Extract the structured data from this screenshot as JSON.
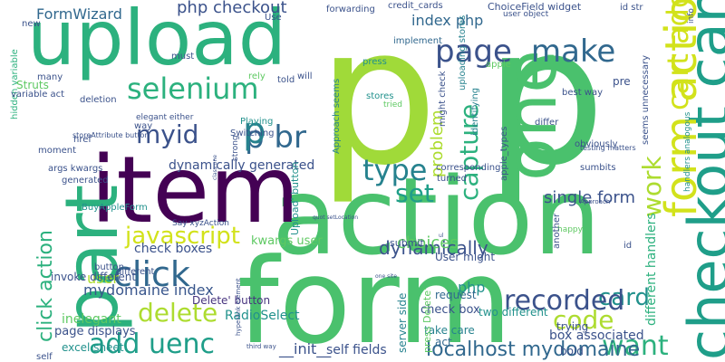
{
  "words": [
    {
      "text": "p",
      "color": "#a0da39",
      "vertical": false
    },
    {
      "text": "p",
      "color": "#4ac16d",
      "vertical": false
    },
    {
      "text": "form",
      "color": "#4ac16d",
      "vertical": false
    },
    {
      "text": "action",
      "color": "#4ac16d",
      "vertical": false
    },
    {
      "text": "item",
      "color": "#440154",
      "vertical": false
    },
    {
      "text": "part",
      "color": "#2cb17e",
      "vertical": true
    },
    {
      "text": "upload",
      "color": "#2cb17e",
      "vertical": false
    },
    {
      "text": "one",
      "color": "#4ac16d",
      "vertical": true
    },
    {
      "text": "checkout cart",
      "color": "#1f9e89",
      "vertical": true
    },
    {
      "text": "form action",
      "color": "#d2e21b",
      "vertical": false
    },
    {
      "text": "selenium",
      "color": "#2cb17e",
      "vertical": false
    },
    {
      "text": "myid",
      "color": "#3b528b",
      "vertical": false
    },
    {
      "text": "p br",
      "color": "#31688e",
      "vertical": false
    },
    {
      "text": "p",
      "color": "#26828e",
      "vertical": false
    },
    {
      "text": "page",
      "color": "#3b528b",
      "vertical": false
    },
    {
      "text": "make",
      "color": "#31688e",
      "vertical": false
    },
    {
      "text": "cart add",
      "color": "#d2e21b",
      "vertical": true
    },
    {
      "text": "capture",
      "color": "#2cb17e",
      "vertical": true
    },
    {
      "text": "type",
      "color": "#26828e",
      "vertical": false
    },
    {
      "text": "set",
      "color": "#1f9e89",
      "vertical": false
    },
    {
      "text": "work",
      "color": "#addc30",
      "vertical": true
    },
    {
      "text": "javascript",
      "color": "#d2e21b",
      "vertical": false
    },
    {
      "text": "click action",
      "color": "#2cb17e",
      "vertical": true
    },
    {
      "text": "click",
      "color": "#31688e",
      "vertical": false
    },
    {
      "text": "delete",
      "color": "#addc30",
      "vertical": false
    },
    {
      "text": "add uenc",
      "color": "#1f9e89",
      "vertical": false
    },
    {
      "text": "card",
      "color": "#21918c",
      "vertical": false
    },
    {
      "text": "recorded",
      "color": "#3b528b",
      "vertical": false
    },
    {
      "text": "code",
      "color": "#addc30",
      "vertical": false
    },
    {
      "text": "want",
      "color": "#2cb17e",
      "vertical": false
    },
    {
      "text": "localhost mydomaine",
      "color": "#31688e",
      "vertical": false
    },
    {
      "text": "mydomaine index",
      "color": "#39568c",
      "vertical": false
    },
    {
      "text": "dynamically",
      "color": "#3b528b",
      "vertical": false
    },
    {
      "text": "FormWizard",
      "color": "#31688e",
      "vertical": false
    },
    {
      "text": "php checkout",
      "color": "#3b528b",
      "vertical": false
    },
    {
      "text": "index php",
      "color": "#31688e",
      "vertical": false
    },
    {
      "text": "problem",
      "color": "#addc30",
      "vertical": true
    },
    {
      "text": "choices",
      "color": "#5ec962",
      "vertical": false
    },
    {
      "text": "dynamically generated",
      "color": "#3b528b",
      "vertical": false
    },
    {
      "text": "php",
      "color": "#21918c",
      "vertical": false
    },
    {
      "text": "single form",
      "color": "#3b528b",
      "vertical": false
    },
    {
      "text": "Delete' button",
      "color": "#46337e",
      "vertical": false
    },
    {
      "text": "box associated",
      "color": "#3b528b",
      "vertical": false
    },
    {
      "text": "server side",
      "color": "#26828e",
      "vertical": true
    },
    {
      "text": "different handlers",
      "color": "#2cb17e",
      "vertical": true
    },
    {
      "text": "__init__",
      "color": "#3b528b",
      "vertical": false
    },
    {
      "text": "self fields",
      "color": "#3b528b",
      "vertical": false
    },
    {
      "text": "user",
      "color": "#addc30",
      "vertical": false
    },
    {
      "text": "check boxes",
      "color": "#3b528b",
      "vertical": false
    },
    {
      "text": "kwargs user",
      "color": "#5ec962",
      "vertical": false
    },
    {
      "text": "invoke different",
      "color": "#3b528b",
      "vertical": false
    },
    {
      "text": "RadioSelect",
      "color": "#21918c",
      "vertical": false
    },
    {
      "text": "Upload' button",
      "color": "#21918c",
      "vertical": false
    },
    {
      "text": "page displays",
      "color": "#3b528b",
      "vertical": false
    },
    {
      "text": "excel sheet",
      "color": "#21918c",
      "vertical": false
    },
    {
      "text": "inelegant",
      "color": "#5ec962",
      "vertical": false
    },
    {
      "text": "check box",
      "color": "#3b528b",
      "vertical": false
    },
    {
      "text": "request",
      "color": "#31688e",
      "vertical": false
    },
    {
      "text": "two different",
      "color": "#21918c",
      "vertical": false
    },
    {
      "text": "take care",
      "color": "#26828e",
      "vertical": false
    },
    {
      "text": "trying",
      "color": "#3b528b",
      "vertical": false
    },
    {
      "text": "act",
      "color": "#31688e",
      "vertical": false
    },
    {
      "text": "bold",
      "color": "#3b528b",
      "vertical": false
    },
    {
      "text": "User might",
      "color": "#3b528b",
      "vertical": false
    },
    {
      "text": "submit",
      "color": "#3b528b",
      "vertical": false
    },
    {
      "text": "press Delete'",
      "color": "#5ec962",
      "vertical": true
    },
    {
      "text": "Approach seems",
      "color": "#26828e",
      "vertical": true
    },
    {
      "text": "uploading stores",
      "color": "#26828e",
      "vertical": true
    },
    {
      "text": "identifying",
      "color": "#26828e",
      "vertical": true
    },
    {
      "text": "might check",
      "color": "#3b528b",
      "vertical": true
    },
    {
      "text": "apple_types",
      "color": "#3b528b",
      "vertical": true
    },
    {
      "text": "seems unnecessary",
      "color": "#3b528b",
      "vertical": true
    },
    {
      "text": "handlers analogous",
      "color": "#21918c",
      "vertical": true
    },
    {
      "text": "hidden variable",
      "color": "#2cb17e",
      "vertical": true
    },
    {
      "text": "credit_cards",
      "color": "#3b528b",
      "vertical": false
    },
    {
      "text": "ChoiceField widget",
      "color": "#3b528b",
      "vertical": false
    },
    {
      "text": "forwarding",
      "color": "#3b528b",
      "vertical": false
    },
    {
      "text": "user object",
      "color": "#3b528b",
      "vertical": false
    },
    {
      "text": "id str",
      "color": "#3b528b",
      "vertical": false
    },
    {
      "text": "implement",
      "color": "#31688e",
      "vertical": false
    },
    {
      "text": "press",
      "color": "#21918c",
      "vertical": false
    },
    {
      "text": "apple",
      "color": "#5ec962",
      "vertical": false
    },
    {
      "text": "stores",
      "color": "#21918c",
      "vertical": false
    },
    {
      "text": "tried",
      "color": "#5ec962",
      "vertical": false
    },
    {
      "text": "pre",
      "color": "#3b528b",
      "vertical": false
    },
    {
      "text": "best way",
      "color": "#3b528b",
      "vertical": false
    },
    {
      "text": "differ",
      "color": "#3b528b",
      "vertical": false
    },
    {
      "text": "obviously",
      "color": "#3b528b",
      "vertical": false
    },
    {
      "text": "sumbits",
      "color": "#3b528b",
      "vertical": false
    },
    {
      "text": "turned",
      "color": "#3b528b",
      "vertical": false
    },
    {
      "text": "corresponding",
      "color": "#3b528b",
      "vertical": false
    },
    {
      "text": "Use",
      "color": "#3b528b",
      "vertical": false
    },
    {
      "text": "new",
      "color": "#3b528b",
      "vertical": false
    },
    {
      "text": "must",
      "color": "#3b528b",
      "vertical": false
    },
    {
      "text": "Struts",
      "color": "#5ec962",
      "vertical": false
    },
    {
      "text": "variable act",
      "color": "#3b528b",
      "vertical": false
    },
    {
      "text": "many",
      "color": "#3b528b",
      "vertical": false
    },
    {
      "text": "deletion",
      "color": "#3b528b",
      "vertical": false
    },
    {
      "text": "elegant either",
      "color": "#3b528b",
      "vertical": false
    },
    {
      "text": "rely",
      "color": "#5ec962",
      "vertical": false
    },
    {
      "text": "told",
      "color": "#3b528b",
      "vertical": false
    },
    {
      "text": "will",
      "color": "#3b528b",
      "vertical": false
    },
    {
      "text": "Playing",
      "color": "#21918c",
      "vertical": false
    },
    {
      "text": "Switching",
      "color": "#3b528b",
      "vertical": false
    },
    {
      "text": "strong",
      "color": "#3b528b",
      "vertical": true
    },
    {
      "text": "way",
      "color": "#3b528b",
      "vertical": false
    },
    {
      "text": "storeAttribute button",
      "color": "#3b528b",
      "vertical": false
    },
    {
      "text": "moment",
      "color": "#3b528b",
      "vertical": false
    },
    {
      "text": "args kwargs",
      "color": "#3b528b",
      "vertical": false
    },
    {
      "text": "generated",
      "color": "#3b528b",
      "vertical": false
    },
    {
      "text": "href",
      "color": "#3b528b",
      "vertical": false
    },
    {
      "text": "BuyAppleForm",
      "color": "#21918c",
      "vertical": false
    },
    {
      "text": "Say xyzAction",
      "color": "#3b528b",
      "vertical": false
    },
    {
      "text": "button",
      "color": "#3b528b",
      "vertical": false
    },
    {
      "text": "different",
      "color": "#3b528b",
      "vertical": false
    },
    {
      "text": "happy",
      "color": "#5ec962",
      "vertical": false
    },
    {
      "text": "another",
      "color": "#3b528b",
      "vertical": true
    },
    {
      "text": "id",
      "color": "#3b528b",
      "vertical": false
    },
    {
      "text": "info",
      "color": "#3b528b",
      "vertical": true
    },
    {
      "text": "self",
      "color": "#3b528b",
      "vertical": false
    },
    {
      "text": "testing matters",
      "color": "#3b528b",
      "vertical": false
    },
    {
      "text": "Approach",
      "color": "#3b528b",
      "vertical": false
    },
    {
      "text": "hyperlink element",
      "color": "#3b528b",
      "vertical": true
    },
    {
      "text": "class one",
      "color": "#3b528b",
      "vertical": true
    },
    {
      "text": "third way",
      "color": "#3b528b",
      "vertical": false
    },
    {
      "text": "ul",
      "color": "#3b528b",
      "vertical": false
    },
    {
      "text": "one site",
      "color": "#3b528b",
      "vertical": false
    },
    {
      "text": "quot setLocation",
      "color": "#3b528b",
      "vertical": false
    }
  ]
}
